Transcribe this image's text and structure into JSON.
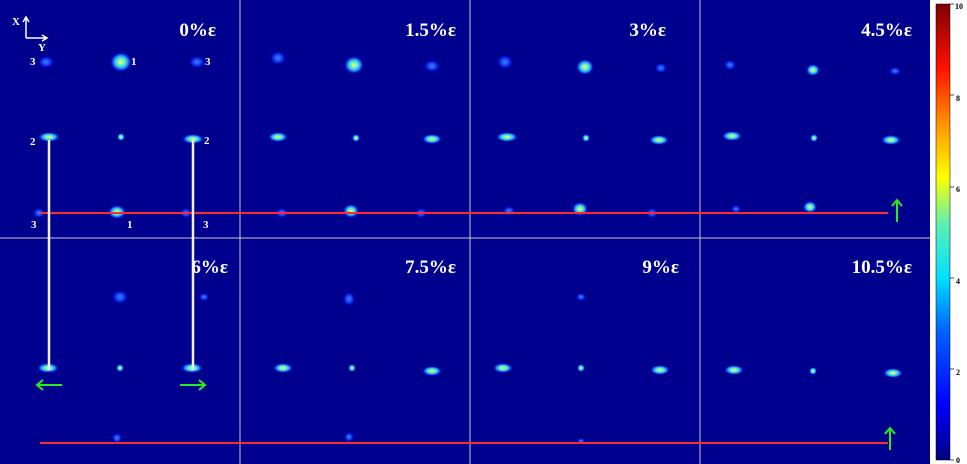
{
  "panels": [
    {
      "label": "0%ε"
    },
    {
      "label": "1.5%ε"
    },
    {
      "label": "3%ε"
    },
    {
      "label": "4.5%ε"
    },
    {
      "label": "6%ε"
    },
    {
      "label": "7.5%ε"
    },
    {
      "label": "9%ε"
    },
    {
      "label": "10.5%ε"
    }
  ],
  "axes": {
    "x": "X",
    "y": "Y"
  },
  "spot_labels": [
    "3",
    "1",
    "3",
    "2",
    "2",
    "3",
    "1",
    "3"
  ],
  "colorbar": {
    "ticks": [
      "10",
      "8",
      "6",
      "4",
      "2",
      "0"
    ],
    "min": 0,
    "max": 10
  },
  "colors": {
    "background": "#00008f",
    "grid": "#c8c8c8",
    "reference_line": "#ff2a2a",
    "marker_line": "#f0f0f0",
    "arrow": "#22ee22"
  }
}
